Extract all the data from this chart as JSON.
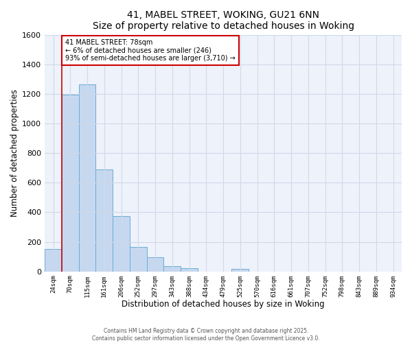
{
  "title": "41, MABEL STREET, WOKING, GU21 6NN",
  "subtitle": "Size of property relative to detached houses in Woking",
  "xlabel": "Distribution of detached houses by size in Woking",
  "ylabel": "Number of detached properties",
  "bar_labels": [
    "24sqm",
    "70sqm",
    "115sqm",
    "161sqm",
    "206sqm",
    "252sqm",
    "297sqm",
    "343sqm",
    "388sqm",
    "434sqm",
    "479sqm",
    "525sqm",
    "570sqm",
    "616sqm",
    "661sqm",
    "707sqm",
    "752sqm",
    "798sqm",
    "843sqm",
    "889sqm",
    "934sqm"
  ],
  "bar_values": [
    150,
    1195,
    1265,
    690,
    375,
    165,
    95,
    35,
    20,
    0,
    0,
    15,
    0,
    0,
    0,
    0,
    0,
    0,
    0,
    0,
    0
  ],
  "bar_color": "#c5d8f0",
  "bar_edge_color": "#6aacd4",
  "annotation_text_line1": "41 MABEL STREET: 78sqm",
  "annotation_text_line2": "← 6% of detached houses are smaller (246)",
  "annotation_text_line3": "93% of semi-detached houses are larger (3,710) →",
  "red_line_color": "#cc0000",
  "annotation_box_edge": "#cc0000",
  "ylim": [
    0,
    1600
  ],
  "yticks": [
    0,
    200,
    400,
    600,
    800,
    1000,
    1200,
    1400,
    1600
  ],
  "grid_color": "#d0d8e8",
  "bg_color": "#eef2fa",
  "footer1": "Contains HM Land Registry data © Crown copyright and database right 2025.",
  "footer2": "Contains public sector information licensed under the Open Government Licence v3.0."
}
